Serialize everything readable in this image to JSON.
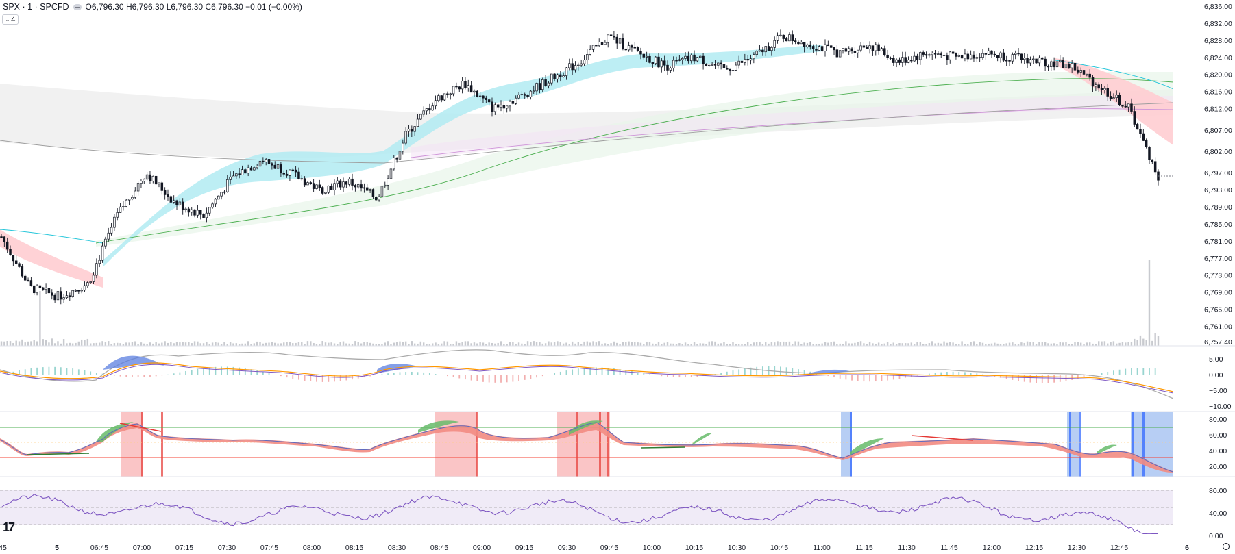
{
  "header": {
    "symbol": "SPX · 1 · SPCFD",
    "open_label": "O",
    "open": "6,796.30",
    "high_label": "H",
    "high": "6,796.30",
    "low_label": "L",
    "low": "6,796.30",
    "close_label": "C",
    "close": "6,796.30",
    "change": "−0.01 (−0.00%)",
    "indicator_count": "4",
    "chevron_icon": "chevron-down-icon",
    "status_icon": "market-status-icon"
  },
  "chart_data": [
    {
      "type": "line",
      "panel": "price",
      "series_style": "candlestick with volume, EMA ribbons",
      "y_ticks": [
        "6,836.00",
        "6,832.00",
        "6,828.00",
        "6,824.00",
        "6,820.00",
        "6,816.00",
        "6,812.00",
        "6,807.00",
        "6,802.00",
        "6,797.00",
        "6,793.00",
        "6,789.00",
        "6,785.00",
        "6,781.00",
        "6,777.00",
        "6,773.00",
        "6,769.00",
        "6,765.00",
        "6,761.00",
        "6,757.40"
      ],
      "ylim": [
        6757.4,
        6836
      ],
      "x_ticks": [
        "45",
        "5",
        "06:45",
        "07:00",
        "07:15",
        "07:30",
        "07:45",
        "08:00",
        "08:15",
        "08:30",
        "08:45",
        "09:00",
        "09:15",
        "09:30",
        "09:45",
        "10:00",
        "10:15",
        "10:30",
        "10:45",
        "11:00",
        "11:15",
        "11:30",
        "11:45",
        "12:00",
        "12:15",
        "12:30",
        "12:45",
        "6"
      ],
      "x": [
        "06:25",
        "06:35",
        "06:45",
        "06:55",
        "07:05",
        "07:15",
        "07:25",
        "07:35",
        "07:45",
        "07:55",
        "08:05",
        "08:15",
        "08:25",
        "08:35",
        "08:45",
        "08:55",
        "09:05",
        "09:15",
        "09:25",
        "09:35",
        "09:45",
        "09:55",
        "10:05",
        "10:15",
        "10:25",
        "10:35",
        "10:45",
        "10:55",
        "11:05",
        "11:15",
        "11:25",
        "11:35",
        "11:45",
        "11:55",
        "12:05",
        "12:15",
        "12:25",
        "12:35",
        "12:45",
        "12:55",
        "13:00"
      ],
      "series": [
        {
          "values": [
            6782,
            6770,
            6768,
            6771,
            6787,
            6797,
            6790,
            6787,
            6796,
            6800,
            6797,
            6793,
            6795,
            6791,
            6806,
            6814,
            6818,
            6812,
            6815,
            6819,
            6823,
            6829,
            6825,
            6822,
            6824,
            6821,
            6824,
            6829,
            6827,
            6825,
            6827,
            6823,
            6825,
            6824,
            6825,
            6824,
            6823,
            6822,
            6817,
            6812,
            6796
          ]
        }
      ],
      "last_price": 6796.3
    },
    {
      "type": "area",
      "panel": "oscillator-1",
      "y_ticks": [
        "5.00",
        "0.00",
        "−5.00",
        "−10.00"
      ],
      "ylim": [
        -10,
        5
      ]
    },
    {
      "type": "line",
      "panel": "oscillator-2",
      "y_ticks": [
        "80.00",
        "60.00",
        "40.00",
        "20.00"
      ],
      "ylim": [
        20,
        80
      ],
      "levels": [
        70,
        30
      ]
    },
    {
      "type": "line",
      "panel": "rsi",
      "y_ticks": [
        "80.00",
        "40.00",
        "0.00"
      ],
      "ylim": [
        0,
        80
      ],
      "levels": [
        80,
        50,
        20
      ]
    }
  ],
  "colors": {
    "up_candle": "#131722",
    "down_candle": "#131722",
    "ribbon_bull": "#b2ebf2",
    "ribbon_bear": "#ffcdd2",
    "ema_green": "#4caf50",
    "ema_purple": "#ce93d8",
    "ema_teal": "#26c6da",
    "rsi_line": "#7e57c2",
    "rsi_band": "#ede7f6",
    "zone_red": "#f7a6a8",
    "zone_blue": "#90b4ee",
    "grid": "#f0f3fa"
  }
}
